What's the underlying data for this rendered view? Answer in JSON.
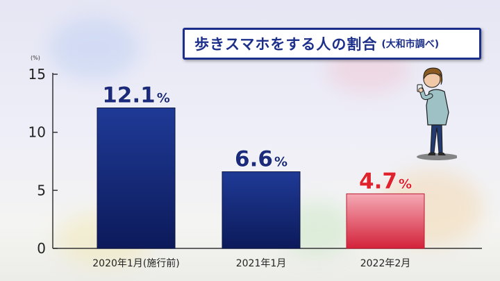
{
  "title": {
    "main": "歩きスマホをする人の割合",
    "sub": "(大和市調べ)"
  },
  "colors": {
    "title_text": "#1b2f8a",
    "title_border": "#1b2f8a",
    "bar_normal_top": "#1f3a96",
    "bar_normal_bottom": "#0c1a5a",
    "bar_highlight_top": "#f5a9b4",
    "bar_highlight_bottom": "#d3223a",
    "label_normal": "#1b2a7a",
    "label_highlight": "#e0222d"
  },
  "icons": [
    "person-with-smartphone-icon"
  ],
  "chart_data": {
    "type": "bar",
    "title": "歩きスマホをする人の割合",
    "subtitle": "(大和市調べ)",
    "y_unit": "(%)",
    "ylim": [
      0,
      15
    ],
    "yticks": [
      0,
      5,
      10,
      15
    ],
    "grid": false,
    "categories": [
      "2020年1月(施行前)",
      "2021年1月",
      "2022年2月"
    ],
    "values": [
      12.1,
      6.6,
      4.7
    ],
    "value_labels": [
      "12.1",
      "6.6",
      "4.7"
    ],
    "value_suffix": "%",
    "highlight": [
      false,
      false,
      true
    ]
  }
}
